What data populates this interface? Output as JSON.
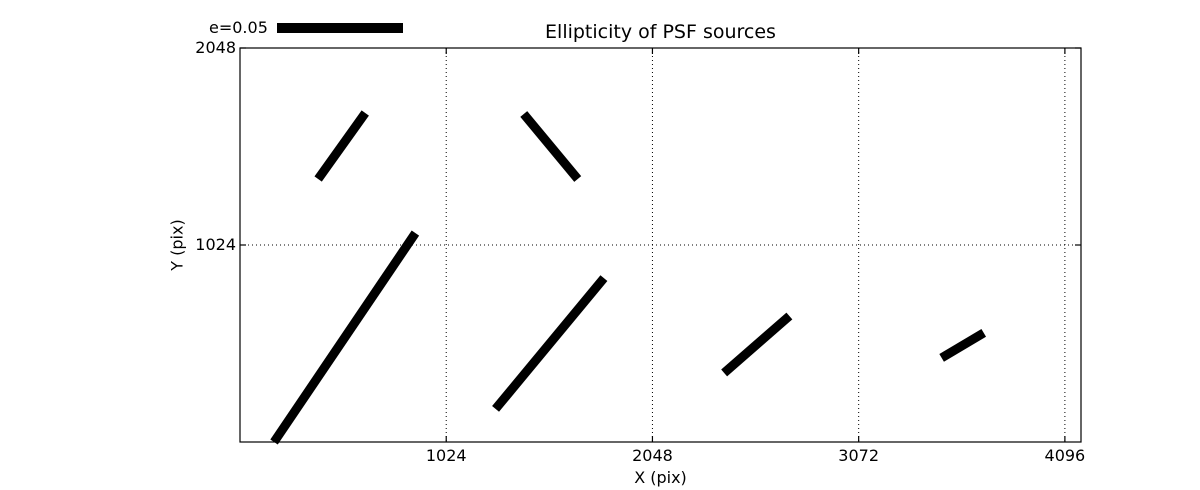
{
  "figure": {
    "background": "#ffffff"
  },
  "chart_data": {
    "type": "whisker-segments",
    "title": "Ellipticity of PSF sources",
    "xlabel": "X (pix)",
    "ylabel": "Y (pix)",
    "xlim": [
      0,
      4176
    ],
    "ylim": [
      0,
      2048
    ],
    "x_ticks": [
      1024,
      2048,
      3072,
      4096
    ],
    "y_ticks": [
      1024,
      2048
    ],
    "grid": true,
    "grid_style": "dotted",
    "legend": {
      "label": "e=0.05",
      "position": "upper-left-outside"
    },
    "line_color": "#000000",
    "line_width": 9,
    "segments": [
      {
        "x1": 388,
        "y1": 1367,
        "x2": 622,
        "y2": 1710
      },
      {
        "x1": 1409,
        "y1": 1705,
        "x2": 1677,
        "y2": 1367
      },
      {
        "x1": 169,
        "y1": 0,
        "x2": 871,
        "y2": 1086
      },
      {
        "x1": 1269,
        "y1": 172,
        "x2": 1807,
        "y2": 852
      },
      {
        "x1": 2404,
        "y1": 359,
        "x2": 2728,
        "y2": 655
      },
      {
        "x1": 3484,
        "y1": 437,
        "x2": 3693,
        "y2": 567
      }
    ]
  }
}
